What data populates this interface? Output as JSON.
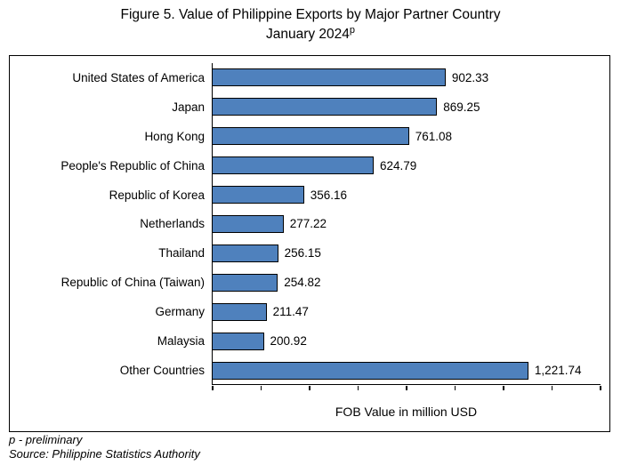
{
  "header": {
    "title_line1": "Figure 5. Value of Philippine Exports by Major Partner Country",
    "title_line2": "January 2024",
    "title_superscript": "p"
  },
  "chart_data": {
    "type": "bar",
    "orientation": "horizontal",
    "title": "Figure 5. Value of Philippine Exports by Major Partner Country, January 2024 (preliminary)",
    "categories": [
      "United States of America",
      "Japan",
      "Hong Kong",
      "People's Republic of China",
      "Republic of Korea",
      "Netherlands",
      "Thailand",
      "Republic of China (Taiwan)",
      "Germany",
      "Malaysia",
      "Other Countries"
    ],
    "values": [
      902.33,
      869.25,
      761.08,
      624.79,
      356.16,
      277.22,
      256.15,
      254.82,
      211.47,
      200.92,
      1221.74
    ],
    "value_labels": [
      "902.33",
      "869.25",
      "761.08",
      "624.79",
      "356.16",
      "277.22",
      "256.15",
      "254.82",
      "211.47",
      "200.92",
      "1,221.74"
    ],
    "xlabel": "FOB Value in million USD",
    "ylabel": "",
    "xlim": [
      0,
      1500
    ],
    "tick_count": 9,
    "grid": false,
    "legend_position": "none",
    "bar_color": "#4f81bd",
    "bar_border_color": "#000000"
  },
  "footnotes": {
    "preliminary": "p - preliminary",
    "source": "Source: Philippine Statistics Authority"
  }
}
